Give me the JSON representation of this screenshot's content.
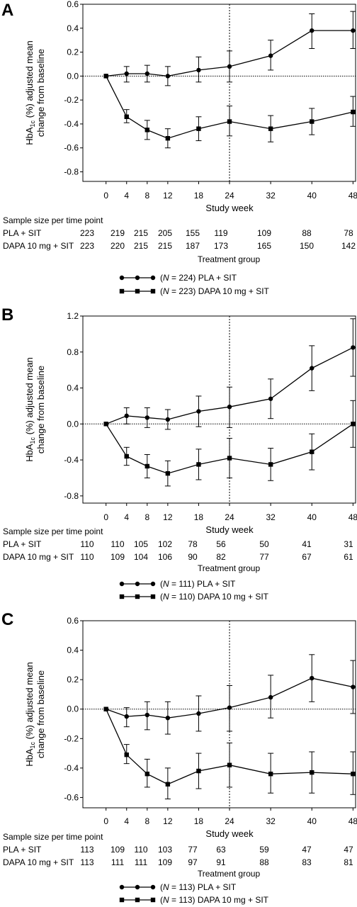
{
  "panels": [
    {
      "letter": "A",
      "y_ticks": [
        0.6,
        0.4,
        0.2,
        0.0,
        -0.2,
        -0.4,
        -0.6,
        -0.8
      ],
      "y_tick_labels": [
        "0.6",
        "0.4",
        "0.2",
        "0.0",
        "-0.2",
        "-0.4",
        "-0.6",
        "-0.8"
      ],
      "ylim": [
        -0.88,
        0.6
      ],
      "ylabel_line1": "HbA",
      "ylabel_sub": "1c",
      "ylabel_rest": " (%) adjusted mean",
      "ylabel_line2": "change from baseline",
      "counts": {
        "PLA + SIT": [
          223,
          219,
          215,
          205,
          155,
          119,
          109,
          88,
          78
        ],
        "DAPA 10 mg + SIT": [
          223,
          220,
          215,
          215,
          187,
          173,
          165,
          150,
          142
        ]
      },
      "legend_n": {
        "PLA + SIT": "224",
        "DAPA 10 mg + SIT": "223"
      }
    },
    {
      "letter": "B",
      "y_ticks": [
        1.2,
        0.8,
        0.4,
        0.0,
        -0.4,
        -0.8
      ],
      "y_tick_labels": [
        "1.2",
        "0.8",
        "0.4",
        "0.0",
        "-0.4",
        "-0.8"
      ],
      "ylim": [
        -0.88,
        1.2
      ],
      "ylabel_line1": "HbA",
      "ylabel_sub": "1c",
      "ylabel_rest": " (%) adjusted mean",
      "ylabel_line2": "change from baseline",
      "counts": {
        "PLA + SIT": [
          110,
          110,
          105,
          102,
          78,
          56,
          50,
          41,
          31
        ],
        "DAPA 10 mg + SIT": [
          110,
          109,
          104,
          106,
          90,
          82,
          77,
          67,
          61
        ]
      },
      "legend_n": {
        "PLA + SIT": "111",
        "DAPA 10 mg + SIT": "110"
      }
    },
    {
      "letter": "C",
      "y_ticks": [
        0.6,
        0.4,
        0.2,
        0.0,
        -0.2,
        -0.4,
        -0.6
      ],
      "y_tick_labels": [
        "0.6",
        "0.4",
        "0.2",
        "0.0",
        "-0.2",
        "-0.4",
        "-0.6"
      ],
      "ylim": [
        -0.67,
        0.6
      ],
      "ylabel_line1": "HbA",
      "ylabel_sub": "1c",
      "ylabel_rest": " (%) adjusted mean",
      "ylabel_line2": "change from baseline",
      "counts": {
        "PLA + SIT": [
          113,
          109,
          110,
          103,
          77,
          63,
          59,
          47,
          47
        ],
        "DAPA 10 mg + SIT": [
          113,
          111,
          111,
          109,
          97,
          91,
          88,
          83,
          81
        ]
      },
      "legend_n": {
        "PLA + SIT": "113",
        "DAPA 10 mg + SIT": "113"
      }
    }
  ],
  "common": {
    "x_ticks": [
      0,
      4,
      8,
      12,
      18,
      24,
      32,
      40,
      48
    ],
    "x_tick_labels": [
      "0",
      "4",
      "8",
      "12",
      "18",
      "24",
      "32",
      "40",
      "48"
    ],
    "xlabel": "Study week",
    "sample_size_title": "Sample size per time point",
    "row_labels": [
      "PLA + SIT",
      "DAPA 10 mg + SIT"
    ],
    "treatment_group_label": "Treatment group",
    "legend_prefix": "(",
    "legend_n_var": "N",
    "legend_eq": " = ",
    "legend_close": ")"
  },
  "chart_data": [
    {
      "type": "line",
      "title": "A",
      "xlabel": "Study week",
      "ylabel": "HbA1c (%) adjusted mean change from baseline",
      "x": [
        0,
        4,
        8,
        12,
        18,
        24,
        32,
        40,
        48
      ],
      "ylim": [
        -0.8,
        0.6
      ],
      "reference_lines": {
        "horizontal_y": 0.0,
        "vertical_x": 24
      },
      "series": [
        {
          "name": "PLA + SIT",
          "marker": "circle",
          "values": [
            0.0,
            0.02,
            0.02,
            0.0,
            0.05,
            0.08,
            0.17,
            0.38,
            0.38
          ],
          "ci_low": [
            0.0,
            -0.05,
            -0.05,
            -0.08,
            -0.05,
            -0.05,
            0.05,
            0.23,
            0.23
          ],
          "ci_high": [
            0.0,
            0.08,
            0.09,
            0.08,
            0.16,
            0.21,
            0.3,
            0.52,
            0.54
          ]
        },
        {
          "name": "DAPA 10 mg + SIT",
          "marker": "square",
          "values": [
            0.0,
            -0.34,
            -0.45,
            -0.52,
            -0.44,
            -0.38,
            -0.44,
            -0.38,
            -0.3
          ],
          "ci_low": [
            0.0,
            -0.39,
            -0.53,
            -0.6,
            -0.54,
            -0.5,
            -0.55,
            -0.49,
            -0.42
          ],
          "ci_high": [
            0.0,
            -0.28,
            -0.37,
            -0.44,
            -0.34,
            -0.25,
            -0.33,
            -0.27,
            -0.17
          ]
        }
      ]
    },
    {
      "type": "line",
      "title": "B",
      "xlabel": "Study week",
      "ylabel": "HbA1c (%) adjusted mean change from baseline",
      "x": [
        0,
        4,
        8,
        12,
        18,
        24,
        32,
        40,
        48
      ],
      "ylim": [
        -0.8,
        1.2
      ],
      "reference_lines": {
        "horizontal_y": 0.0,
        "vertical_x": 24
      },
      "series": [
        {
          "name": "PLA + SIT",
          "marker": "circle",
          "values": [
            0.0,
            0.09,
            0.07,
            0.05,
            0.14,
            0.19,
            0.28,
            0.62,
            0.85
          ],
          "ci_low": [
            0.0,
            0.0,
            -0.04,
            -0.06,
            -0.03,
            -0.04,
            0.06,
            0.37,
            0.53
          ],
          "ci_high": [
            0.0,
            0.18,
            0.18,
            0.16,
            0.31,
            0.41,
            0.5,
            0.87,
            1.17
          ]
        },
        {
          "name": "DAPA 10 mg + SIT",
          "marker": "square",
          "values": [
            0.0,
            -0.36,
            -0.47,
            -0.55,
            -0.45,
            -0.38,
            -0.45,
            -0.31,
            0.0
          ],
          "ci_low": [
            0.0,
            -0.46,
            -0.6,
            -0.69,
            -0.62,
            -0.6,
            -0.63,
            -0.51,
            -0.26
          ],
          "ci_high": [
            0.0,
            -0.26,
            -0.34,
            -0.41,
            -0.28,
            -0.16,
            -0.27,
            -0.11,
            0.26
          ]
        }
      ]
    },
    {
      "type": "line",
      "title": "C",
      "xlabel": "Study week",
      "ylabel": "HbA1c (%) adjusted mean change from baseline",
      "x": [
        0,
        4,
        8,
        12,
        18,
        24,
        32,
        40,
        48
      ],
      "ylim": [
        -0.6,
        0.6
      ],
      "reference_lines": {
        "horizontal_y": 0.0,
        "vertical_x": 24
      },
      "series": [
        {
          "name": "PLA + SIT",
          "marker": "circle",
          "values": [
            0.0,
            -0.05,
            -0.04,
            -0.06,
            -0.03,
            0.01,
            0.08,
            0.21,
            0.15
          ],
          "ci_low": [
            0.0,
            -0.12,
            -0.14,
            -0.17,
            -0.15,
            -0.15,
            -0.06,
            0.05,
            -0.03
          ],
          "ci_high": [
            0.0,
            0.01,
            0.05,
            0.05,
            0.09,
            0.16,
            0.23,
            0.37,
            0.33
          ]
        },
        {
          "name": "DAPA 10 mg + SIT",
          "marker": "square",
          "values": [
            0.0,
            -0.31,
            -0.44,
            -0.51,
            -0.42,
            -0.38,
            -0.44,
            -0.43,
            -0.44
          ],
          "ci_low": [
            0.0,
            -0.37,
            -0.53,
            -0.61,
            -0.54,
            -0.53,
            -0.57,
            -0.57,
            -0.58
          ],
          "ci_high": [
            0.0,
            -0.24,
            -0.34,
            -0.4,
            -0.3,
            -0.23,
            -0.3,
            -0.29,
            -0.29
          ]
        }
      ]
    }
  ]
}
